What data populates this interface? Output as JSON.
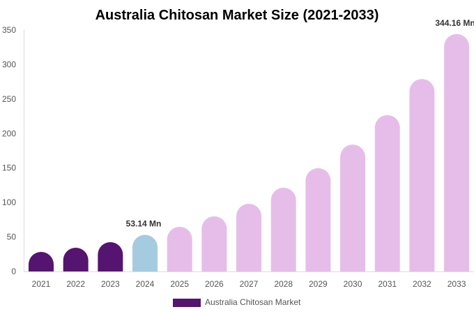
{
  "chart_data": {
    "type": "bar",
    "title": "Australia Chitosan Market Size (2021-2033)",
    "categories": [
      "2021",
      "2022",
      "2023",
      "2024",
      "2025",
      "2026",
      "2027",
      "2028",
      "2029",
      "2030",
      "2031",
      "2032",
      "2033"
    ],
    "series": [
      {
        "name": "Australia Chitosan Market",
        "values": [
          28.3,
          34.4,
          42.5,
          53.14,
          64.7,
          79.9,
          98.1,
          121.4,
          149.7,
          184.0,
          226.6,
          279.0,
          344.16
        ]
      }
    ],
    "bar_colors": [
      "#55146f",
      "#55146f",
      "#55146f",
      "#a5cbe0",
      "#e6bde9",
      "#e6bde9",
      "#e6bde9",
      "#e6bde9",
      "#e6bde9",
      "#e6bde9",
      "#e6bde9",
      "#e6bde9",
      "#e6bde9"
    ],
    "data_labels": {
      "3": "53.14 Mn",
      "12": "344.16 Mn"
    },
    "ylim": [
      0,
      350
    ],
    "yticks": [
      0,
      50,
      100,
      150,
      200,
      250,
      300,
      350
    ],
    "xlabel": "",
    "ylabel": "",
    "grid": false,
    "legend": {
      "position": "bottom",
      "label": "Australia Chitosan Market",
      "color": "#55146f"
    }
  }
}
